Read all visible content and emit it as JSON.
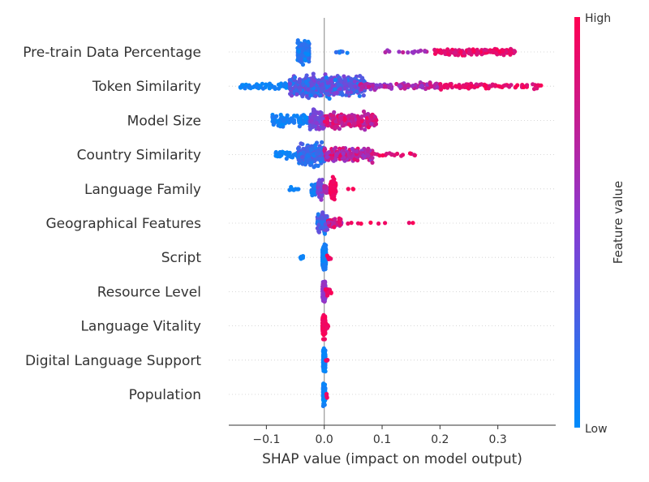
{
  "chart_data": {
    "type": "scatter",
    "subtype": "shap-beeswarm",
    "xlabel": "SHAP value (impact on model output)",
    "xlim": [
      -0.165,
      0.4
    ],
    "x_ticks": [
      {
        "value": -0.1,
        "label": "−0.1"
      },
      {
        "value": 0.0,
        "label": "0.0"
      },
      {
        "value": 0.1,
        "label": "0.1"
      },
      {
        "value": 0.2,
        "label": "0.2"
      },
      {
        "value": 0.3,
        "label": "0.3"
      }
    ],
    "zero_line": 0.0,
    "colorbar": {
      "label": "Feature value",
      "high_label": "High",
      "low_label": "Low",
      "low_color": "#008bfb",
      "mid_color": "#8a3ad1",
      "high_color": "#ff0052"
    },
    "features": [
      {
        "name": "Pre-train Data Percentage",
        "clusters": [
          {
            "x_min": -0.046,
            "x_max": -0.026,
            "count": 220,
            "spread": 1.0,
            "color_lo": 0.0,
            "color_hi": 0.22
          },
          {
            "x_min": 0.012,
            "x_max": 0.042,
            "count": 6,
            "spread": 0.12,
            "color_lo": 0.05,
            "color_hi": 0.2
          },
          {
            "x_min": 0.105,
            "x_max": 0.18,
            "count": 14,
            "spread": 0.2,
            "color_lo": 0.55,
            "color_hi": 0.75
          },
          {
            "x_min": 0.19,
            "x_max": 0.33,
            "count": 150,
            "spread": 0.3,
            "color_lo": 0.8,
            "color_hi": 1.0
          }
        ]
      },
      {
        "name": "Token Similarity",
        "clusters": [
          {
            "x_min": -0.145,
            "x_max": -0.06,
            "count": 70,
            "spread": 0.3,
            "color_lo": 0.0,
            "color_hi": 0.1
          },
          {
            "x_min": -0.06,
            "x_max": 0.07,
            "count": 480,
            "spread": 1.0,
            "color_lo": 0.05,
            "color_hi": 0.5
          },
          {
            "x_min": 0.06,
            "x_max": 0.2,
            "count": 110,
            "spread": 0.35,
            "color_lo": 0.45,
            "color_hi": 0.85
          },
          {
            "x_min": 0.2,
            "x_max": 0.375,
            "count": 90,
            "spread": 0.3,
            "color_lo": 0.8,
            "color_hi": 1.0
          }
        ]
      },
      {
        "name": "Model Size",
        "clusters": [
          {
            "x_min": -0.09,
            "x_max": -0.025,
            "count": 90,
            "spread": 0.55,
            "color_lo": 0.0,
            "color_hi": 0.12
          },
          {
            "x_min": -0.025,
            "x_max": 0.0,
            "count": 110,
            "spread": 1.0,
            "color_lo": 0.3,
            "color_hi": 0.55
          },
          {
            "x_min": 0.0,
            "x_max": 0.09,
            "count": 220,
            "spread": 0.8,
            "color_lo": 0.6,
            "color_hi": 0.95
          }
        ]
      },
      {
        "name": "Country Similarity",
        "clusters": [
          {
            "x_min": -0.085,
            "x_max": -0.045,
            "count": 40,
            "spread": 0.35,
            "color_lo": 0.0,
            "color_hi": 0.1
          },
          {
            "x_min": -0.045,
            "x_max": 0.0,
            "count": 260,
            "spread": 1.0,
            "color_lo": 0.05,
            "color_hi": 0.35
          },
          {
            "x_min": 0.0,
            "x_max": 0.085,
            "count": 170,
            "spread": 0.7,
            "color_lo": 0.5,
            "color_hi": 0.95
          },
          {
            "x_min": 0.085,
            "x_max": 0.165,
            "count": 18,
            "spread": 0.15,
            "color_lo": 0.8,
            "color_hi": 1.0
          }
        ]
      },
      {
        "name": "Language Family",
        "clusters": [
          {
            "x_min": -0.062,
            "x_max": -0.042,
            "count": 7,
            "spread": 0.18,
            "color_lo": 0.0,
            "color_hi": 0.08
          },
          {
            "x_min": -0.022,
            "x_max": -0.012,
            "count": 35,
            "spread": 0.55,
            "color_lo": 0.0,
            "color_hi": 0.15
          },
          {
            "x_min": -0.011,
            "x_max": -0.003,
            "count": 70,
            "spread": 1.0,
            "color_lo": 0.35,
            "color_hi": 0.55
          },
          {
            "x_min": 0.0,
            "x_max": 0.006,
            "count": 20,
            "spread": 0.5,
            "color_lo": 0.6,
            "color_hi": 0.75
          },
          {
            "x_min": 0.01,
            "x_max": 0.02,
            "count": 70,
            "spread": 1.0,
            "color_lo": 0.9,
            "color_hi": 1.0
          },
          {
            "x_min": 0.04,
            "x_max": 0.052,
            "count": 3,
            "spread": 0.1,
            "color_lo": 0.9,
            "color_hi": 1.0
          }
        ]
      },
      {
        "name": "Geographical Features",
        "clusters": [
          {
            "x_min": -0.012,
            "x_max": 0.006,
            "count": 120,
            "spread": 1.0,
            "color_lo": 0.05,
            "color_hi": 0.45
          },
          {
            "x_min": 0.006,
            "x_max": 0.03,
            "count": 60,
            "spread": 0.45,
            "color_lo": 0.6,
            "color_hi": 0.95
          },
          {
            "x_min": 0.04,
            "x_max": 0.155,
            "count": 9,
            "spread": 0.1,
            "color_lo": 0.9,
            "color_hi": 1.0
          }
        ]
      },
      {
        "name": "Script",
        "clusters": [
          {
            "x_min": -0.042,
            "x_max": -0.036,
            "count": 6,
            "spread": 0.15,
            "color_lo": 0.0,
            "color_hi": 0.05
          },
          {
            "x_min": -0.003,
            "x_max": 0.003,
            "count": 250,
            "spread": 1.0,
            "color_lo": 0.0,
            "color_hi": 0.12
          },
          {
            "x_min": 0.004,
            "x_max": 0.012,
            "count": 8,
            "spread": 0.3,
            "color_lo": 0.9,
            "color_hi": 1.0
          }
        ]
      },
      {
        "name": "Resource Level",
        "clusters": [
          {
            "x_min": -0.003,
            "x_max": 0.002,
            "count": 220,
            "spread": 1.0,
            "color_lo": 0.45,
            "color_hi": 0.6
          },
          {
            "x_min": 0.002,
            "x_max": 0.012,
            "count": 20,
            "spread": 0.4,
            "color_lo": 0.85,
            "color_hi": 1.0
          }
        ]
      },
      {
        "name": "Language Vitality",
        "clusters": [
          {
            "x_min": -0.003,
            "x_max": 0.002,
            "count": 220,
            "spread": 1.0,
            "color_lo": 0.9,
            "color_hi": 1.0
          },
          {
            "x_min": 0.002,
            "x_max": 0.008,
            "count": 8,
            "spread": 0.3,
            "color_lo": 0.9,
            "color_hi": 1.0
          }
        ]
      },
      {
        "name": "Digital Language Support",
        "clusters": [
          {
            "x_min": -0.002,
            "x_max": 0.002,
            "count": 200,
            "spread": 1.0,
            "color_lo": 0.0,
            "color_hi": 0.1
          },
          {
            "x_min": 0.002,
            "x_max": 0.006,
            "count": 4,
            "spread": 0.25,
            "color_lo": 0.9,
            "color_hi": 1.0
          }
        ]
      },
      {
        "name": "Population",
        "clusters": [
          {
            "x_min": -0.002,
            "x_max": 0.002,
            "count": 200,
            "spread": 1.0,
            "color_lo": 0.0,
            "color_hi": 0.1
          },
          {
            "x_min": 0.002,
            "x_max": 0.006,
            "count": 4,
            "spread": 0.25,
            "color_lo": 0.85,
            "color_hi": 1.0
          }
        ]
      }
    ]
  }
}
